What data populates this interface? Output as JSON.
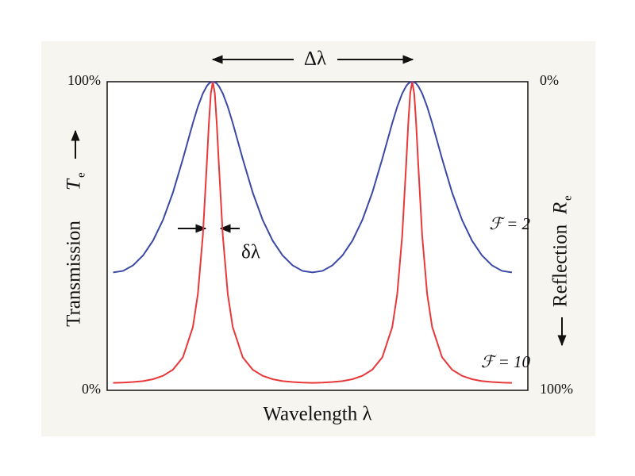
{
  "chart_data": {
    "type": "line",
    "xlabel": "Wavelength λ",
    "ylabel": "Transmission",
    "ylabel_symbol": "T",
    "ylabel_subscript": "e",
    "y2label": "Reflection",
    "y2label_symbol": "R",
    "y2label_subscript": "e",
    "annotations": [
      "Δλ",
      "δλ"
    ],
    "x": [
      0.5,
      0.55,
      0.6,
      0.65,
      0.7,
      0.75,
      0.8,
      0.85,
      0.9,
      0.925,
      0.95,
      0.97,
      0.98,
      0.99,
      1,
      1.01,
      1.02,
      1.03,
      1.05,
      1.075,
      1.1,
      1.15,
      1.2,
      1.25,
      1.3,
      1.35,
      1.4,
      1.45,
      1.5,
      1.55,
      1.6,
      1.65,
      1.7,
      1.75,
      1.8,
      1.85,
      1.9,
      1.925,
      1.95,
      1.97,
      1.98,
      1.99,
      2,
      2.01,
      2.02,
      2.03,
      2.05,
      2.075,
      2.1,
      2.15,
      2.2,
      2.25,
      2.3,
      2.35,
      2.4,
      2.45,
      2.5
    ],
    "xlim": [
      0.47,
      2.58
    ],
    "ylim": [
      0,
      100
    ],
    "yticks": [
      {
        "value": 0,
        "label": "0%"
      },
      {
        "value": 100,
        "label": "100%"
      }
    ],
    "y2lim": [
      100,
      0
    ],
    "y2ticks": [
      {
        "value": 0,
        "label": "0%"
      },
      {
        "value": 100,
        "label": "100%"
      }
    ],
    "grid": false,
    "series": [
      {
        "name": "ℱ = 2",
        "color": "#3b48a6",
        "values": [
          38.2,
          38.7,
          40.5,
          43.7,
          48.5,
          55.2,
          64.1,
          75.0,
          86.6,
          91.9,
          96.2,
          98.6,
          99.4,
          99.8,
          100,
          99.8,
          99.4,
          98.6,
          96.2,
          91.9,
          86.6,
          75.0,
          64.1,
          55.2,
          48.5,
          43.7,
          40.5,
          38.7,
          38.2,
          38.7,
          40.5,
          43.7,
          48.5,
          55.2,
          64.1,
          75.0,
          86.6,
          91.9,
          96.2,
          98.6,
          99.4,
          99.8,
          100,
          99.8,
          99.4,
          98.6,
          96.2,
          91.9,
          86.6,
          75.0,
          64.1,
          55.2,
          48.5,
          43.7,
          40.5,
          38.7,
          38.2
        ]
      },
      {
        "name": "ℱ = 10",
        "color": "#e8383a",
        "values": [
          2.4,
          2.5,
          2.7,
          3.0,
          3.6,
          4.7,
          6.7,
          10.7,
          20.5,
          31.2,
          50.2,
          73.6,
          86.2,
          96.2,
          100,
          96.2,
          86.2,
          73.6,
          50.2,
          31.2,
          20.5,
          10.7,
          6.7,
          4.7,
          3.6,
          3.0,
          2.7,
          2.5,
          2.4,
          2.5,
          2.7,
          3.0,
          3.6,
          4.7,
          6.7,
          10.7,
          20.5,
          31.2,
          50.2,
          73.6,
          86.2,
          96.2,
          100,
          96.2,
          86.2,
          73.6,
          50.2,
          31.2,
          20.5,
          10.7,
          6.7,
          4.7,
          3.6,
          3.0,
          2.7,
          2.5,
          2.4
        ]
      }
    ]
  }
}
